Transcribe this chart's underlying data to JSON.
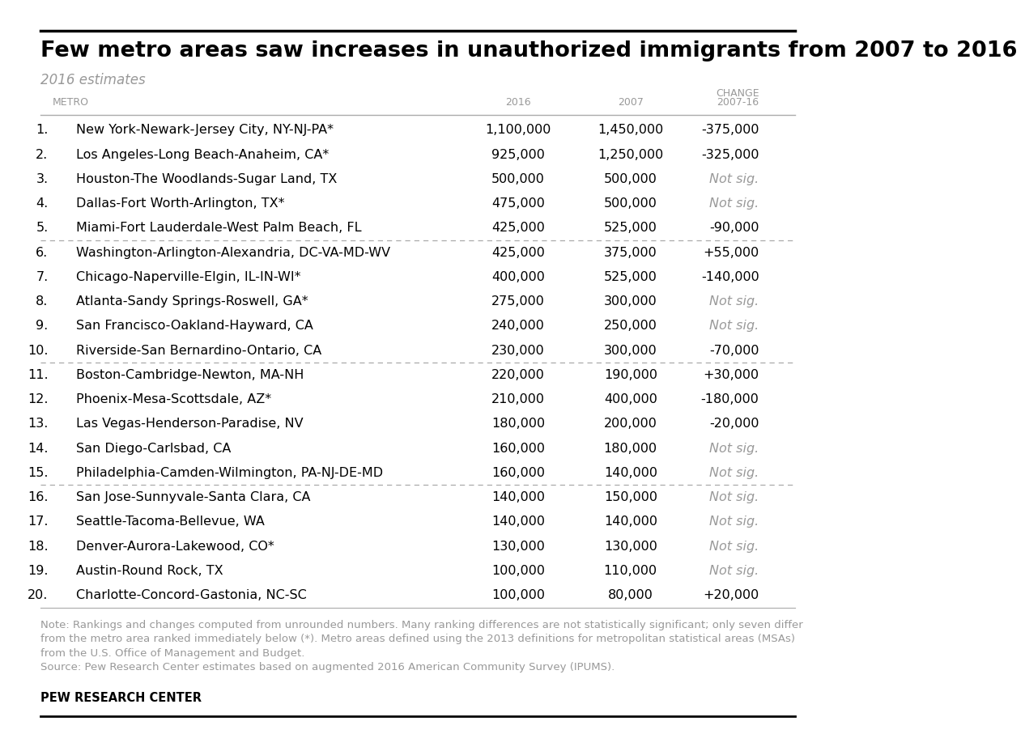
{
  "title": "Few metro areas saw increases in unauthorized immigrants from 2007 to 2016",
  "subtitle": "2016 estimates",
  "col_headers": [
    "METRO",
    "2016",
    "2007",
    "CHANGE\n2007-16"
  ],
  "rows": [
    {
      "rank": "1.",
      "metro": "New York-Newark-Jersey City, NY-NJ-PA*",
      "v2016": "1,100,000",
      "v2007": "1,450,000",
      "change": "-375,000",
      "not_sig": false
    },
    {
      "rank": "2.",
      "metro": "Los Angeles-Long Beach-Anaheim, CA*",
      "v2016": "925,000",
      "v2007": "1,250,000",
      "change": "-325,000",
      "not_sig": false
    },
    {
      "rank": "3.",
      "metro": "Houston-The Woodlands-Sugar Land, TX",
      "v2016": "500,000",
      "v2007": "500,000",
      "change": "Not sig.",
      "not_sig": true
    },
    {
      "rank": "4.",
      "metro": "Dallas-Fort Worth-Arlington, TX*",
      "v2016": "475,000",
      "v2007": "500,000",
      "change": "Not sig.",
      "not_sig": true
    },
    {
      "rank": "5.",
      "metro": "Miami-Fort Lauderdale-West Palm Beach, FL",
      "v2016": "425,000",
      "v2007": "525,000",
      "change": "-90,000",
      "not_sig": false
    },
    {
      "rank": "6.",
      "metro": "Washington-Arlington-Alexandria, DC-VA-MD-WV",
      "v2016": "425,000",
      "v2007": "375,000",
      "change": "+55,000",
      "not_sig": false
    },
    {
      "rank": "7.",
      "metro": "Chicago-Naperville-Elgin, IL-IN-WI*",
      "v2016": "400,000",
      "v2007": "525,000",
      "change": "-140,000",
      "not_sig": false
    },
    {
      "rank": "8.",
      "metro": "Atlanta-Sandy Springs-Roswell, GA*",
      "v2016": "275,000",
      "v2007": "300,000",
      "change": "Not sig.",
      "not_sig": true
    },
    {
      "rank": "9.",
      "metro": "San Francisco-Oakland-Hayward, CA",
      "v2016": "240,000",
      "v2007": "250,000",
      "change": "Not sig.",
      "not_sig": true
    },
    {
      "rank": "10.",
      "metro": "Riverside-San Bernardino-Ontario, CA",
      "v2016": "230,000",
      "v2007": "300,000",
      "change": "-70,000",
      "not_sig": false
    },
    {
      "rank": "11.",
      "metro": "Boston-Cambridge-Newton, MA-NH",
      "v2016": "220,000",
      "v2007": "190,000",
      "change": "+30,000",
      "not_sig": false
    },
    {
      "rank": "12.",
      "metro": "Phoenix-Mesa-Scottsdale, AZ*",
      "v2016": "210,000",
      "v2007": "400,000",
      "change": "-180,000",
      "not_sig": false
    },
    {
      "rank": "13.",
      "metro": "Las Vegas-Henderson-Paradise, NV",
      "v2016": "180,000",
      "v2007": "200,000",
      "change": "-20,000",
      "not_sig": false
    },
    {
      "rank": "14.",
      "metro": "San Diego-Carlsbad, CA",
      "v2016": "160,000",
      "v2007": "180,000",
      "change": "Not sig.",
      "not_sig": true
    },
    {
      "rank": "15.",
      "metro": "Philadelphia-Camden-Wilmington, PA-NJ-DE-MD",
      "v2016": "160,000",
      "v2007": "140,000",
      "change": "Not sig.",
      "not_sig": true
    },
    {
      "rank": "16.",
      "metro": "San Jose-Sunnyvale-Santa Clara, CA",
      "v2016": "140,000",
      "v2007": "150,000",
      "change": "Not sig.",
      "not_sig": true
    },
    {
      "rank": "17.",
      "metro": "Seattle-Tacoma-Bellevue, WA",
      "v2016": "140,000",
      "v2007": "140,000",
      "change": "Not sig.",
      "not_sig": true
    },
    {
      "rank": "18.",
      "metro": "Denver-Aurora-Lakewood, CO*",
      "v2016": "130,000",
      "v2007": "130,000",
      "change": "Not sig.",
      "not_sig": true
    },
    {
      "rank": "19.",
      "metro": "Austin-Round Rock, TX",
      "v2016": "100,000",
      "v2007": "110,000",
      "change": "Not sig.",
      "not_sig": true
    },
    {
      "rank": "20.",
      "metro": "Charlotte-Concord-Gastonia, NC-SC",
      "v2016": "100,000",
      "v2007": "80,000",
      "change": "+20,000",
      "not_sig": false
    }
  ],
  "dotted_line_after": [
    4,
    9,
    14
  ],
  "note_text": "Note: Rankings and changes computed from unrounded numbers. Many ranking differences are not statistically significant; only seven differ\nfrom the metro area ranked immediately below (*). Metro areas defined using the 2013 definitions for metropolitan statistical areas (MSAs)\nfrom the U.S. Office of Management and Budget.\nSource: Pew Research Center estimates based on augmented 2016 American Community Survey (IPUMS).",
  "branding": "PEW RESEARCH CENTER",
  "bg_color": "#ffffff",
  "text_color": "#000000",
  "header_color": "#999999",
  "not_sig_color": "#999999",
  "title_color": "#000000",
  "subtitle_color": "#999999"
}
